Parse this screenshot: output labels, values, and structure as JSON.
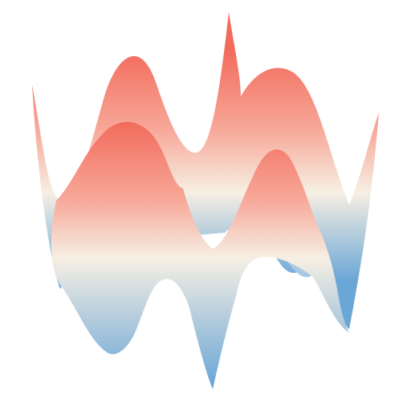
{
  "image": {
    "subject": "abstract-wavy-surface",
    "colors": {
      "background": "#ffffff",
      "peak_red": "#f26a5b",
      "mid_cream": "#f6efe3",
      "trough_blue": "#6aa6d6"
    }
  }
}
